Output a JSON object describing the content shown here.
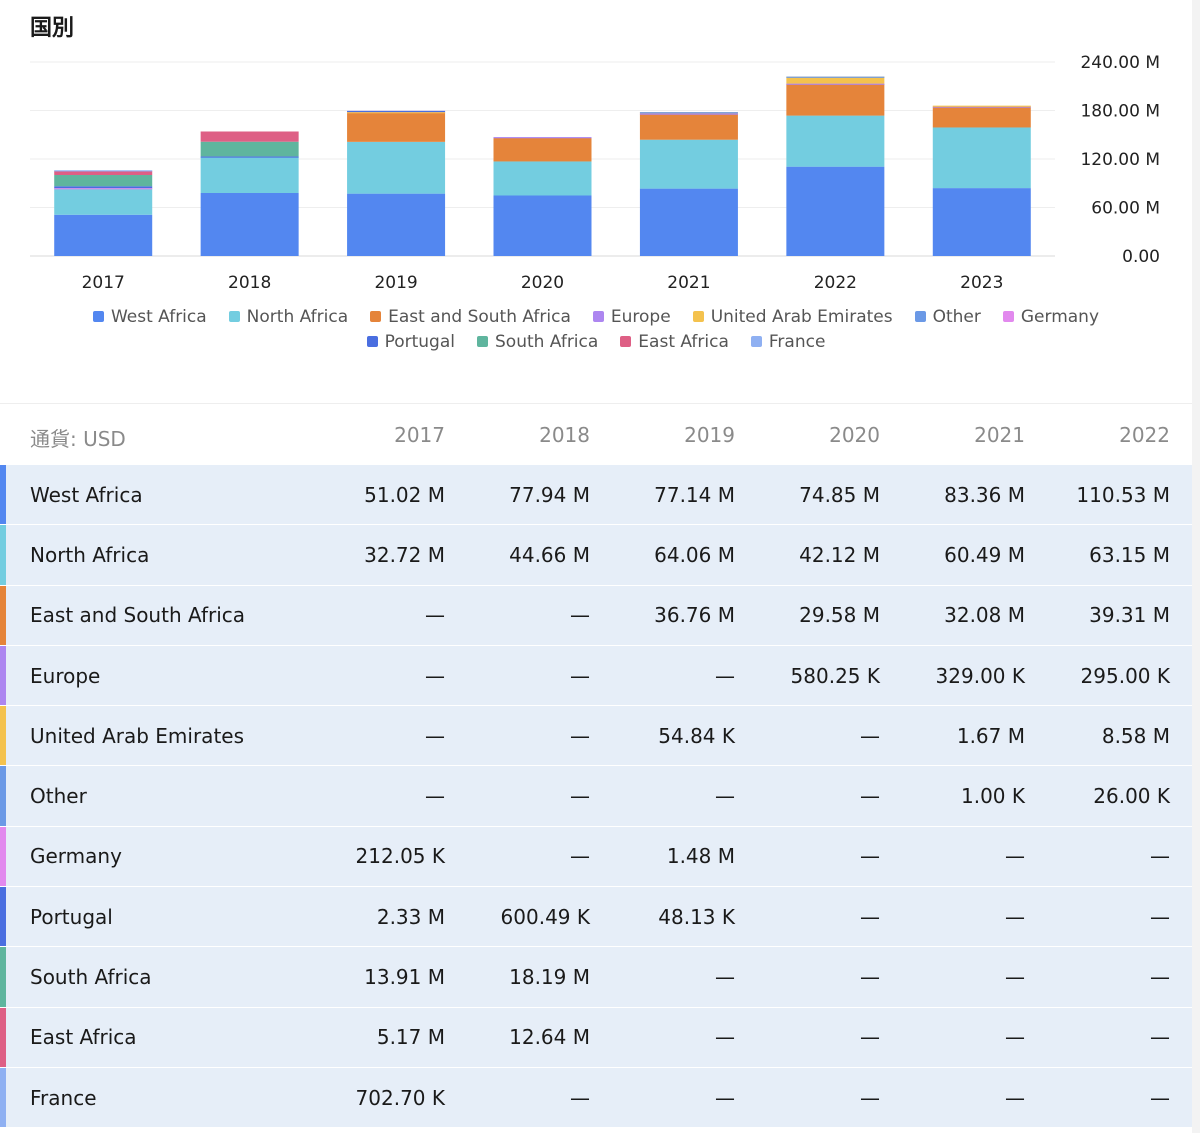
{
  "section_title": "国別",
  "currency_label": "通貨: USD",
  "colors": {
    "West Africa": "#5387f0",
    "North Africa": "#73cde0",
    "East and South Africa": "#e5843a",
    "Europe": "#ad86f0",
    "United Arab Emirates": "#f4c24e",
    "Other": "#6b99e6",
    "Germany": "#e289ee",
    "Portugal": "#4a6ee0",
    "South Africa": "#5fb59e",
    "East Africa": "#de5f85",
    "France": "#8fb0f2"
  },
  "chart_data": {
    "type": "bar",
    "stacked": true,
    "categories": [
      "2017",
      "2018",
      "2019",
      "2020",
      "2021",
      "2022",
      "2023"
    ],
    "y_ticks": [
      "240.00 M",
      "180.00 M",
      "120.00 M",
      "60.00 M",
      "0.00"
    ],
    "ylim": [
      0,
      240
    ],
    "unit": "M",
    "y_axis_position": "right",
    "grid": true,
    "legend_position": "bottom",
    "series": [
      {
        "name": "West Africa",
        "values": [
          51.02,
          77.94,
          77.14,
          74.85,
          83.36,
          110.53,
          84
        ]
      },
      {
        "name": "North Africa",
        "values": [
          32.72,
          44.66,
          64.06,
          42.12,
          60.49,
          63.15,
          75
        ]
      },
      {
        "name": "East and South Africa",
        "values": [
          0,
          0,
          36.76,
          29.58,
          32.08,
          39.31,
          25
        ]
      },
      {
        "name": "Europe",
        "values": [
          0,
          0,
          0,
          0.58,
          0.33,
          0.3,
          1
        ]
      },
      {
        "name": "United Arab Emirates",
        "values": [
          0,
          0,
          0.05,
          0,
          1.67,
          8.58,
          1
        ]
      },
      {
        "name": "Other",
        "values": [
          0,
          0,
          0,
          0,
          0.001,
          0.026,
          0
        ]
      },
      {
        "name": "Germany",
        "values": [
          0.21,
          0,
          1.48,
          0,
          0,
          0,
          0
        ]
      },
      {
        "name": "Portugal",
        "values": [
          2.33,
          0.6,
          0.05,
          0,
          0,
          0,
          0
        ]
      },
      {
        "name": "South Africa",
        "values": [
          13.91,
          18.19,
          0,
          0,
          0,
          0,
          0
        ]
      },
      {
        "name": "East Africa",
        "values": [
          5.17,
          12.64,
          0,
          0,
          0,
          0,
          0
        ]
      },
      {
        "name": "France",
        "values": [
          0.7,
          0,
          0,
          0,
          0,
          0,
          0
        ]
      }
    ]
  },
  "legend": [
    "West Africa",
    "North Africa",
    "East and South Africa",
    "Europe",
    "United Arab Emirates",
    "Other",
    "Germany",
    "Portugal",
    "South Africa",
    "East Africa",
    "France"
  ],
  "table": {
    "headers": [
      "2017",
      "2018",
      "2019",
      "2020",
      "2021",
      "2022"
    ],
    "rows": [
      {
        "label": "West Africa",
        "cells": [
          "51.02 M",
          "77.94 M",
          "77.14 M",
          "74.85 M",
          "83.36 M",
          "110.53 M"
        ]
      },
      {
        "label": "North Africa",
        "cells": [
          "32.72 M",
          "44.66 M",
          "64.06 M",
          "42.12 M",
          "60.49 M",
          "63.15 M"
        ]
      },
      {
        "label": "East and South Africa",
        "cells": [
          "—",
          "—",
          "36.76 M",
          "29.58 M",
          "32.08 M",
          "39.31 M"
        ]
      },
      {
        "label": "Europe",
        "cells": [
          "—",
          "—",
          "—",
          "580.25 K",
          "329.00 K",
          "295.00 K"
        ]
      },
      {
        "label": "United Arab Emirates",
        "cells": [
          "—",
          "—",
          "54.84 K",
          "—",
          "1.67 M",
          "8.58 M"
        ]
      },
      {
        "label": "Other",
        "cells": [
          "—",
          "—",
          "—",
          "—",
          "1.00 K",
          "26.00 K"
        ]
      },
      {
        "label": "Germany",
        "cells": [
          "212.05 K",
          "—",
          "1.48 M",
          "—",
          "—",
          "—"
        ]
      },
      {
        "label": "Portugal",
        "cells": [
          "2.33 M",
          "600.49 K",
          "48.13 K",
          "—",
          "—",
          "—"
        ]
      },
      {
        "label": "South Africa",
        "cells": [
          "13.91 M",
          "18.19 M",
          "—",
          "—",
          "—",
          "—"
        ]
      },
      {
        "label": "East Africa",
        "cells": [
          "5.17 M",
          "12.64 M",
          "—",
          "—",
          "—",
          "—"
        ]
      },
      {
        "label": "France",
        "cells": [
          "702.70 K",
          "—",
          "—",
          "—",
          "—",
          "—"
        ]
      }
    ]
  }
}
